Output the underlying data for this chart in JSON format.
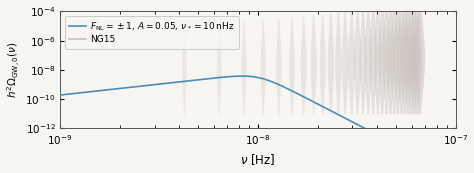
{
  "xlim": [
    1e-09,
    1e-07
  ],
  "ylim": [
    1e-12,
    0.0001
  ],
  "xlabel": "$\\nu$ [Hz]",
  "ylabel": "$h^2\\Omega_{\\mathrm{GW},0}(\\nu)$",
  "line_color": "#4a8fbb",
  "line_label": "$F_{\\mathrm{NL}} = \\pm 1,\\, A = 0.05,\\, \\nu_* = 10\\,\\mathrm{nHz}$",
  "ng15_label": "NG15",
  "ng15_color": "#c8c0bb",
  "background_color": "#f7f6f2",
  "nu_star_hz": 1e-08,
  "peak_amplitude": 6e-09,
  "n_rise": 1.5,
  "n_fall": 7.0
}
